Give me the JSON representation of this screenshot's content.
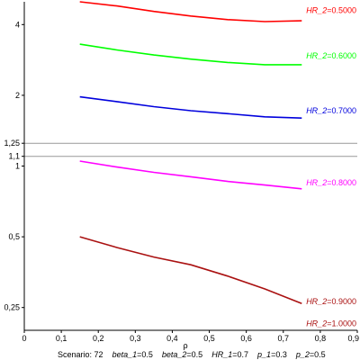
{
  "chart_data": {
    "type": "line",
    "y_scale": "log",
    "x_label": "ρ",
    "xlim": [
      0,
      0.9
    ],
    "ylim": [
      0.2,
      5
    ],
    "x_ticks": [
      0,
      0.1,
      0.2,
      0.3,
      0.4,
      0.5,
      0.6,
      0.7,
      0.8,
      0.9
    ],
    "x_tick_labels": [
      "0",
      "0,1",
      "0,2",
      "0,3",
      "0,4",
      "0,5",
      "0,6",
      "0,7",
      "0,8",
      "0,9"
    ],
    "y_ticks": [
      0.25,
      0.5,
      1,
      1.1,
      1.25,
      2,
      4
    ],
    "y_tick_labels": [
      "0,25",
      "0,5",
      "1",
      "1,1",
      "1,25",
      "2",
      "4"
    ],
    "reference_lines": [
      1.1,
      1.25
    ],
    "series": [
      {
        "name": "HR_2=0.5000",
        "color": "#ff0000",
        "x": [
          0.15,
          0.25,
          0.35,
          0.45,
          0.55,
          0.65,
          0.75
        ],
        "y": [
          5.0,
          4.8,
          4.55,
          4.35,
          4.2,
          4.12,
          4.15
        ]
      },
      {
        "name": "HR_2=0.6000",
        "color": "#00ff00",
        "x": [
          0.15,
          0.25,
          0.35,
          0.45,
          0.55,
          0.65,
          0.75
        ],
        "y": [
          3.3,
          3.12,
          2.97,
          2.85,
          2.76,
          2.7,
          2.7
        ]
      },
      {
        "name": "HR_2=0.7000",
        "color": "#0000dd",
        "x": [
          0.15,
          0.25,
          0.35,
          0.45,
          0.55,
          0.65,
          0.75
        ],
        "y": [
          1.97,
          1.88,
          1.79,
          1.72,
          1.67,
          1.62,
          1.6
        ]
      },
      {
        "name": "HR_2=0.8000",
        "color": "#ff00ff",
        "x": [
          0.15,
          0.25,
          0.35,
          0.45,
          0.55,
          0.65,
          0.75
        ],
        "y": [
          1.05,
          0.99,
          0.94,
          0.9,
          0.86,
          0.83,
          0.8
        ]
      },
      {
        "name": "HR_2=0.9000",
        "color": "#aa1111",
        "x": [
          0.15,
          0.25,
          0.35,
          0.45,
          0.55,
          0.65,
          0.75
        ],
        "y": [
          0.5,
          0.45,
          0.41,
          0.38,
          0.34,
          0.3,
          0.26
        ]
      },
      {
        "name": "HR_2=1.0000",
        "color": "#aa1111",
        "x": [],
        "y": []
      }
    ],
    "legend_labels": [
      {
        "prefix": "HR_2",
        "value": "=0.5000",
        "color": "#ff0000",
        "at": 4.6
      },
      {
        "prefix": "HR_2",
        "value": "=0.6000",
        "color": "#00ff00",
        "at": 2.95
      },
      {
        "prefix": "HR_2",
        "value": "=0.7000",
        "color": "#0000dd",
        "at": 1.72
      },
      {
        "prefix": "HR_2",
        "value": "=0.8000",
        "color": "#ff00ff",
        "at": 0.85
      },
      {
        "prefix": "HR_2",
        "value": "=0.9000",
        "color": "#aa1111",
        "at": 0.265
      },
      {
        "prefix": "HR_2",
        "value": "=1.0000",
        "color": "#aa1111",
        "at": 0.214
      }
    ]
  },
  "footer": {
    "scenario_label": "Scenario: 72",
    "params": [
      {
        "name": "beta_1",
        "value": "=0.5"
      },
      {
        "name": "beta_2",
        "value": "=0.5"
      },
      {
        "name": "HR_1",
        "value": "=0.7"
      },
      {
        "name": "p_1",
        "value": "=0.3"
      },
      {
        "name": "p_2",
        "value": "=0.5"
      }
    ]
  }
}
